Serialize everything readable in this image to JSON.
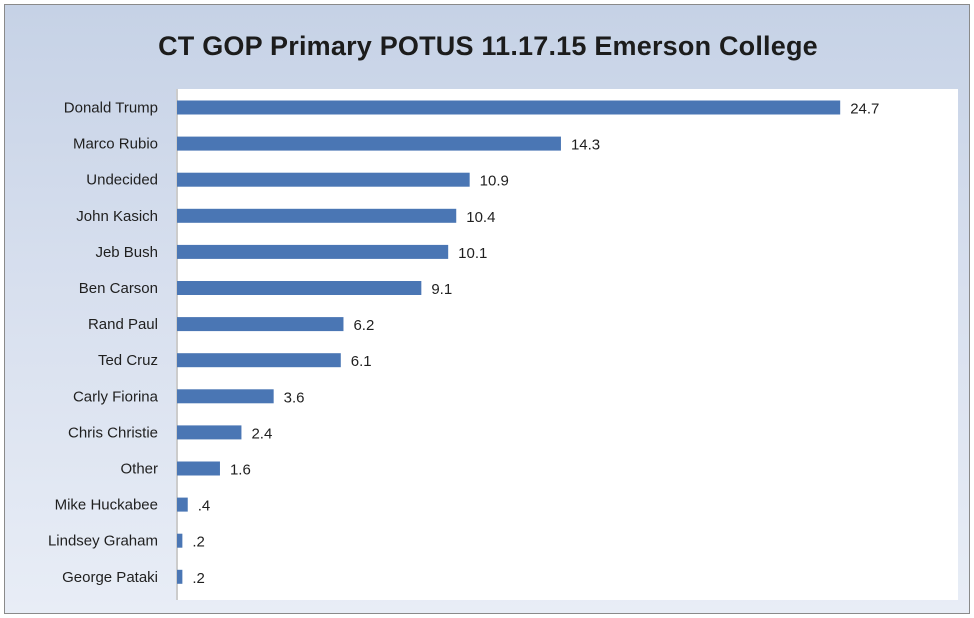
{
  "chart_data": {
    "type": "bar",
    "orientation": "horizontal",
    "title": "CT GOP Primary POTUS  11.17.15  Emerson College",
    "xlabel": "",
    "ylabel": "",
    "xlim": [
      0,
      26
    ],
    "grid": false,
    "legend": "none",
    "bar_color": "#4a76b4",
    "categories": [
      "Donald Trump",
      "Marco Rubio",
      "Undecided",
      "John Kasich",
      "Jeb Bush",
      "Ben Carson",
      "Rand Paul",
      "Ted Cruz",
      "Carly Fiorina",
      "Chris Christie",
      "Other",
      "Mike Huckabee",
      "Lindsey Graham",
      "George Pataki"
    ],
    "values": [
      24.7,
      14.3,
      10.9,
      10.4,
      10.1,
      9.1,
      6.2,
      6.1,
      3.6,
      2.4,
      1.6,
      0.4,
      0.2,
      0.2
    ],
    "data_labels": [
      "24.7",
      "14.3",
      "10.9",
      "10.4",
      "10.1",
      "9.1",
      "6.2",
      "6.1",
      "3.6",
      "2.4",
      "1.6",
      ".4",
      ".2",
      ".2"
    ]
  }
}
